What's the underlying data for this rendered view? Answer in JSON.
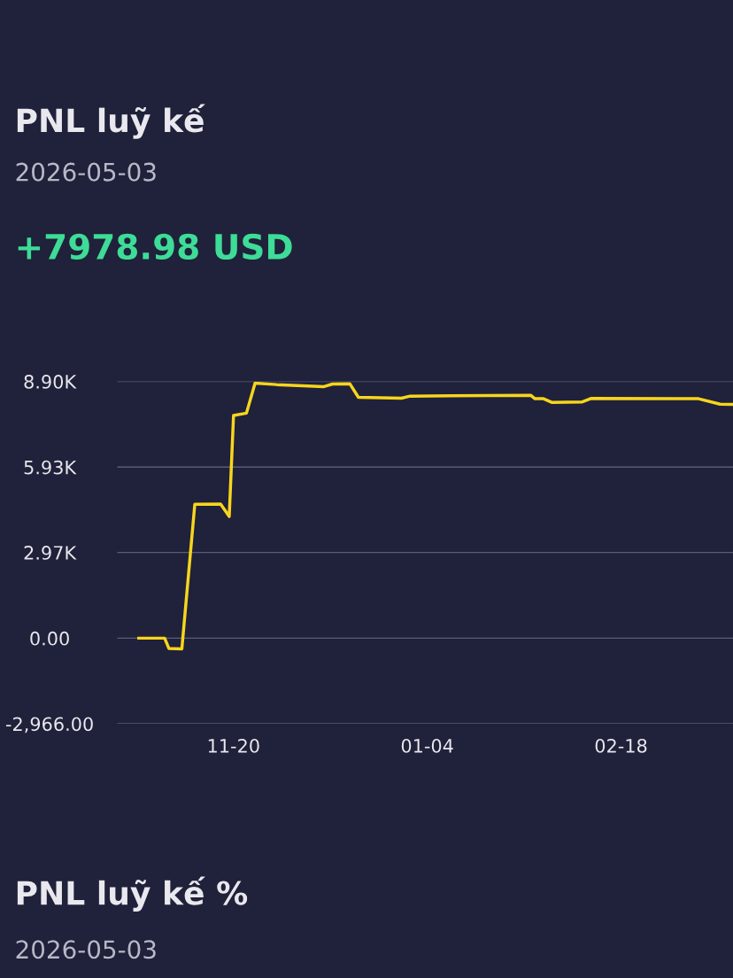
{
  "chart_data": {
    "type": "line",
    "title": "PNL luỹ kế",
    "subtitle": "2026-05-03",
    "annotations": [
      "+7978.98 USD",
      "PNL luỹ kế %",
      "2026-05-03"
    ],
    "x": [
      "2025-10-29",
      "2025-11-04",
      "2025-11-05",
      "2025-11-08",
      "2025-11-11",
      "2025-11-17",
      "2025-11-19",
      "2025-11-20",
      "2025-11-23",
      "2025-11-25",
      "2025-11-30",
      "2025-12-11",
      "2025-12-13",
      "2025-12-17",
      "2025-12-19",
      "2025-12-29",
      "2025-12-31",
      "2026-01-28",
      "2026-01-29",
      "2026-01-31",
      "2026-02-02",
      "2026-02-09",
      "2026-02-11",
      "2026-03-08",
      "2026-03-13",
      "2026-03-16"
    ],
    "series": [
      {
        "color": "#f7d51e",
        "values": [
          0,
          0,
          -360,
          -370,
          4640,
          4650,
          4220,
          7720,
          7800,
          8840,
          8790,
          8720,
          8810,
          8820,
          8350,
          8320,
          8390,
          8420,
          8300,
          8300,
          8170,
          8190,
          8310,
          8300,
          8110,
          8100
        ]
      }
    ],
    "xlim": [
      "2025-10-24",
      "2026-03-16"
    ],
    "xticks": [
      {
        "value": "2025-11-20",
        "label": "11-20"
      },
      {
        "value": "2026-01-04",
        "label": "01-04"
      },
      {
        "value": "2026-02-18",
        "label": "02-18"
      }
    ],
    "ylim": [
      -2966,
      8900
    ],
    "yticks": [
      {
        "value": -2966,
        "label": "-2,966.00"
      },
      {
        "value": 0,
        "label": "0.00"
      },
      {
        "value": 2970,
        "label": "2.97K"
      },
      {
        "value": 5930,
        "label": "5.93K"
      },
      {
        "value": 8900,
        "label": "8.90K"
      }
    ],
    "grid": "y",
    "marker": "none",
    "line_style": "solid"
  }
}
